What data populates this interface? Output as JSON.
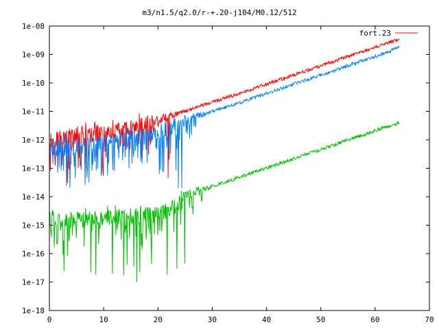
{
  "chart_data": {
    "type": "line",
    "title": "m3/n1.5/q2.0/r-+.20-j104/M0.12/512",
    "xlabel": "",
    "ylabel": "",
    "xlim": [
      0,
      70
    ],
    "ylim": [
      1e-18,
      1e-08
    ],
    "yscale": "log",
    "grid": false,
    "legend_position": "top-right",
    "x_ticks": [
      "0",
      "10",
      "20",
      "30",
      "40",
      "50",
      "60",
      "70"
    ],
    "y_ticks": [
      "1e-18",
      "1e-17",
      "1e-16",
      "1e-15",
      "1e-14",
      "1e-13",
      "1e-12",
      "1e-11",
      "1e-10",
      "1e-09",
      "1e-08"
    ],
    "series": [
      {
        "name": "fort.23",
        "color": "#ff0000",
        "x": [
          0,
          2,
          4,
          6,
          8,
          10,
          12,
          14,
          16,
          18,
          20,
          22,
          24,
          26,
          28,
          30,
          35,
          40,
          45,
          50,
          55,
          60,
          64.5
        ],
        "y": [
          1e-12,
          1.1e-12,
          1.2e-12,
          1.4e-12,
          1.5e-12,
          1.7e-12,
          2e-12,
          2.2e-12,
          2.8e-12,
          3.5e-12,
          5e-12,
          6.5e-12,
          9e-12,
          1.2e-11,
          1.6e-11,
          2.1e-11,
          4.2e-11,
          9e-11,
          1.9e-10,
          4e-10,
          8.5e-10,
          1.8e-09,
          3.5e-09
        ],
        "noise_floor_until_x": 18,
        "dip_min": 3e-14
      },
      {
        "name": "",
        "color": "#0080ff",
        "x": [
          0,
          2,
          4,
          6,
          8,
          10,
          12,
          14,
          16,
          18,
          20,
          22,
          24,
          26,
          28,
          30,
          35,
          40,
          45,
          50,
          55,
          60,
          64.5
        ],
        "y": [
          5e-13,
          5.5e-13,
          6e-13,
          6.5e-13,
          7e-13,
          8e-13,
          9e-13,
          1e-12,
          1.2e-12,
          1.4e-12,
          1.8e-12,
          2.5e-12,
          4.2e-12,
          5.8e-12,
          7.5e-12,
          1e-11,
          2e-11,
          4.3e-11,
          9e-11,
          1.9e-10,
          4e-10,
          8.5e-10,
          1.8e-09
        ],
        "noise_floor_until_x": 23,
        "dip_min": 2e-14
      },
      {
        "name": "",
        "color": "#00c000",
        "x": [
          0,
          2,
          4,
          6,
          8,
          10,
          12,
          14,
          16,
          18,
          20,
          22,
          24,
          26,
          28,
          30,
          35,
          40,
          45,
          50,
          55,
          60,
          64.5
        ],
        "y": [
          1.5e-15,
          1.5e-15,
          1.5e-15,
          1.6e-15,
          1.6e-15,
          1.7e-15,
          1.8e-15,
          1.9e-15,
          2e-15,
          2.2e-15,
          2.4e-15,
          3e-15,
          6e-15,
          1.2e-14,
          1.7e-14,
          2.3e-14,
          4.8e-14,
          1.02e-13,
          2.2e-13,
          4.6e-13,
          9.8e-13,
          2.1e-12,
          4e-12
        ],
        "noise_floor_until_x": 24,
        "dip_min": 1e-17
      }
    ]
  }
}
